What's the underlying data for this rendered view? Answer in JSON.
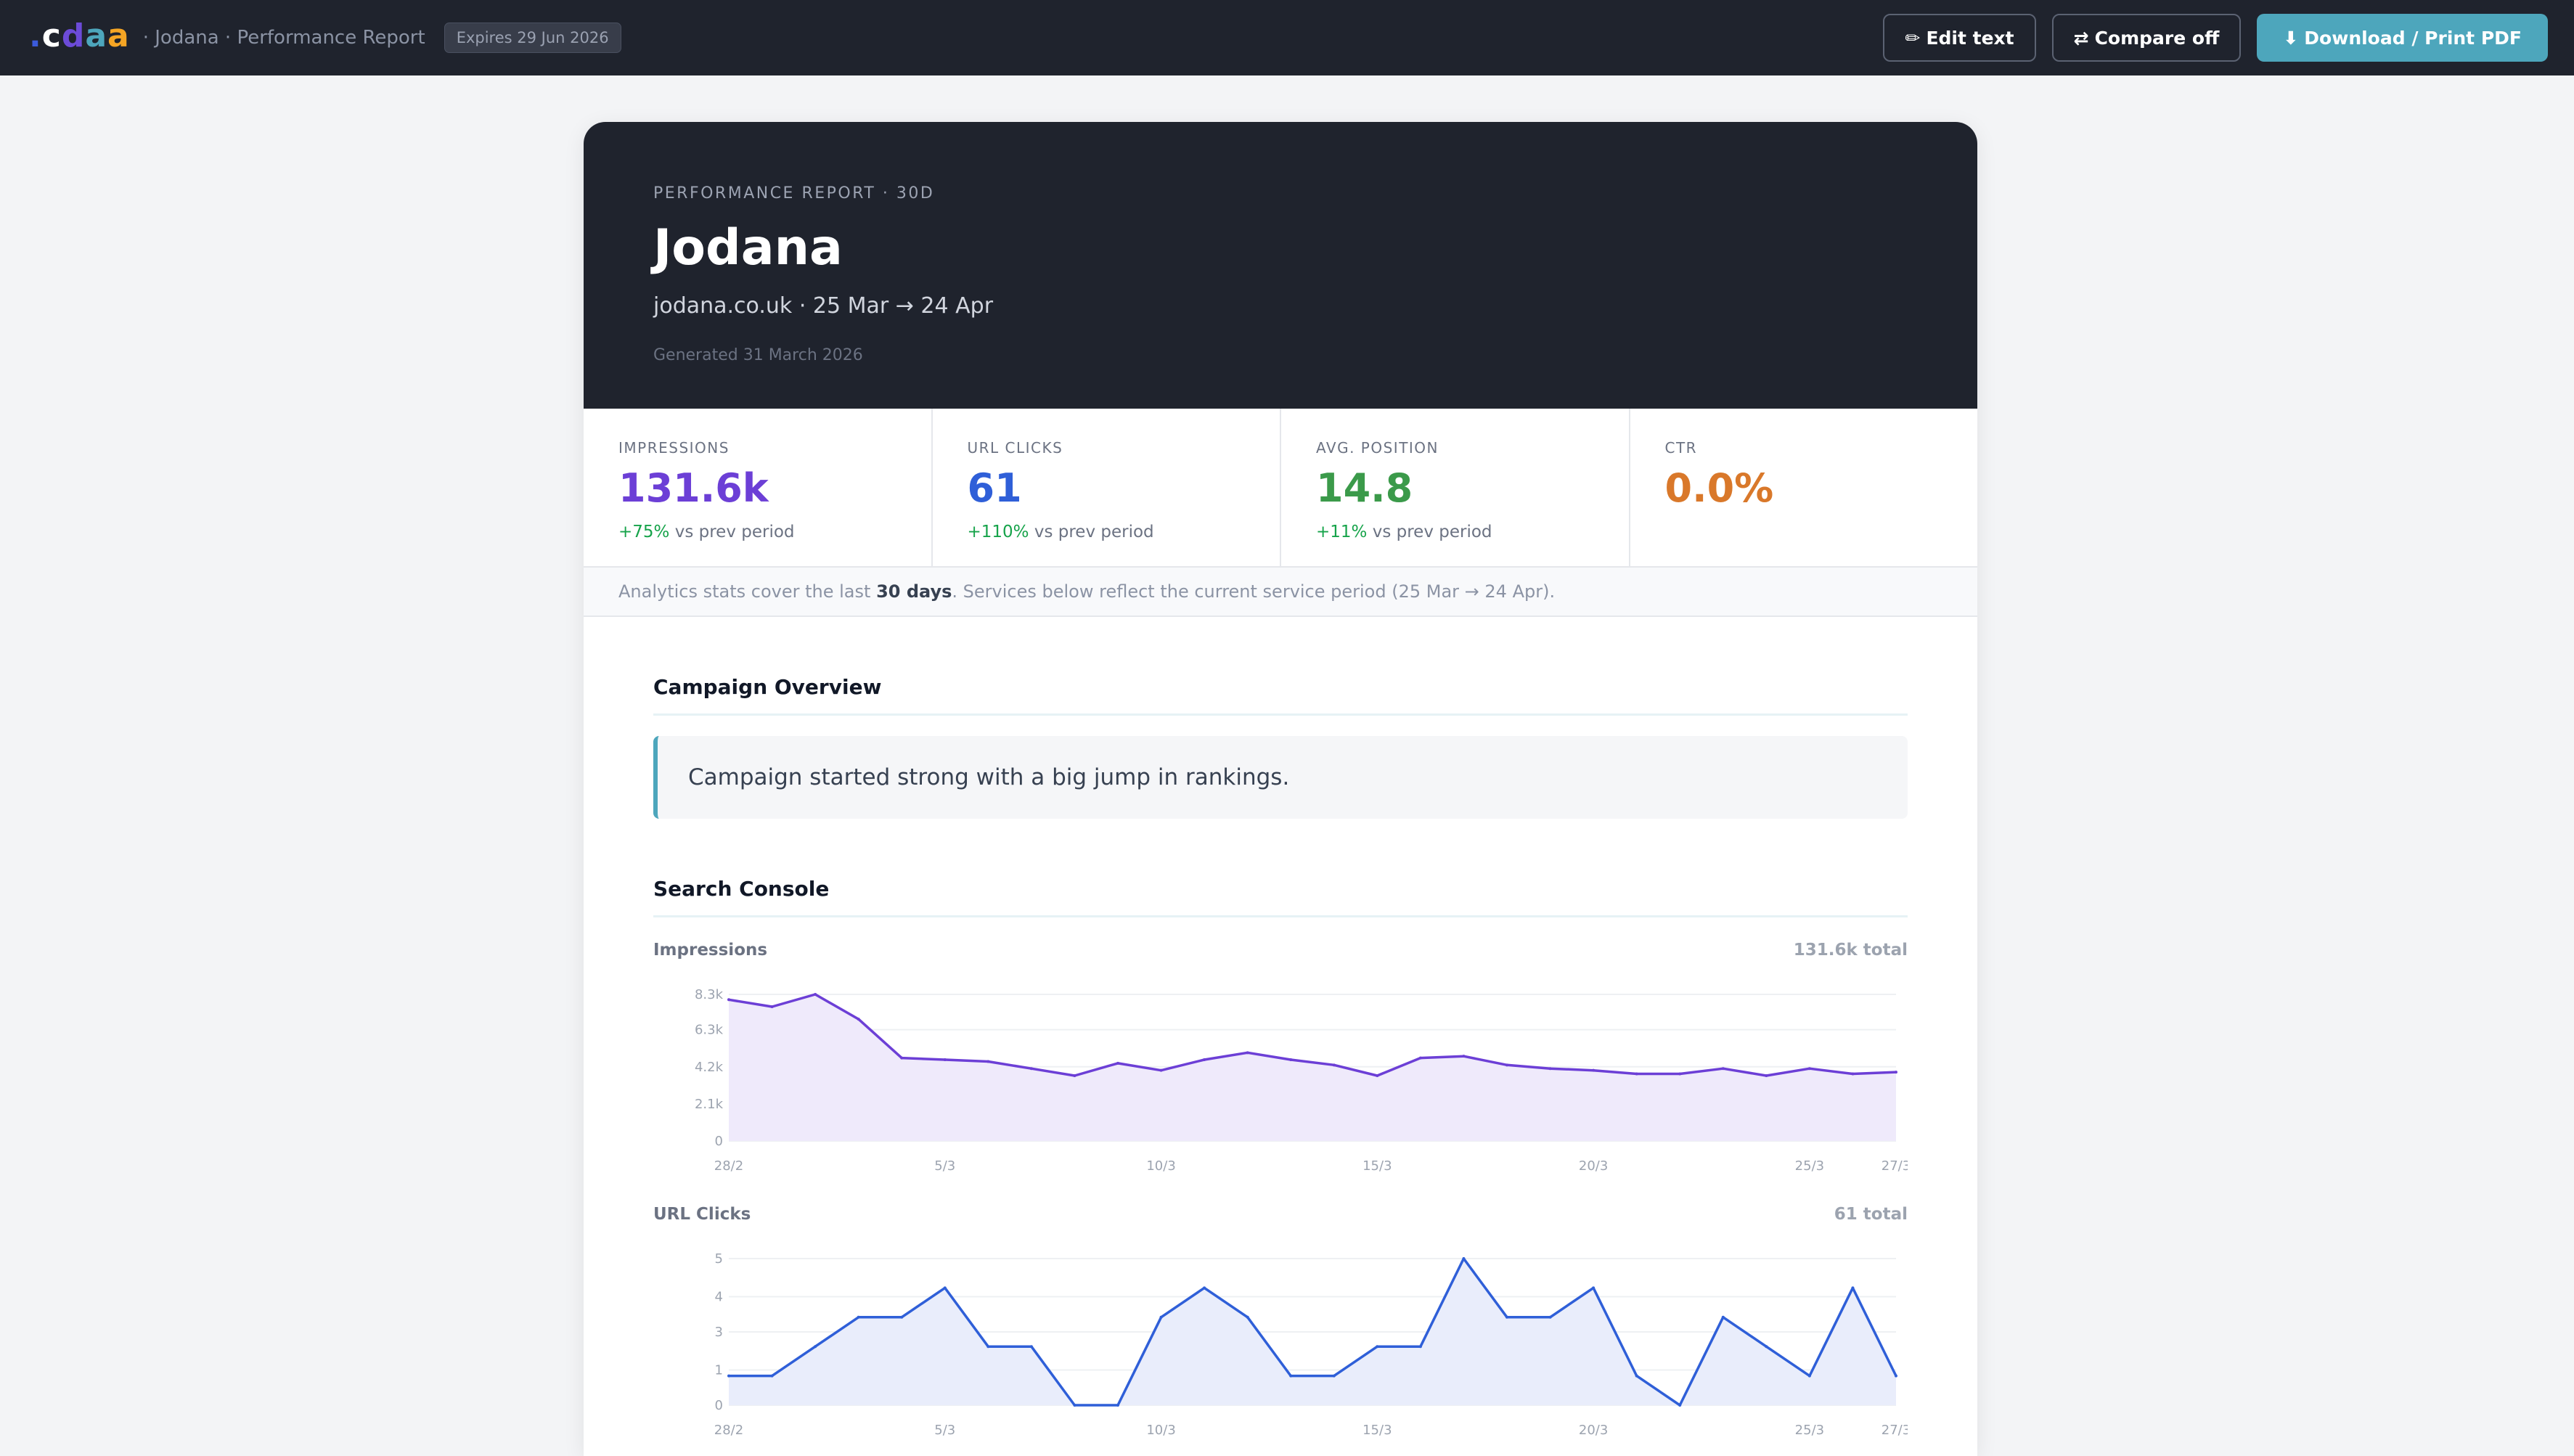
{
  "topbar": {
    "logo_letters": [
      {
        "char": ".",
        "color": "#3b5bdb"
      },
      {
        "char": "c",
        "color": "#ffffff"
      },
      {
        "char": "d",
        "color": "#6c4bd8"
      },
      {
        "char": "a",
        "color": "#4da6bc"
      },
      {
        "char": "a",
        "color": "#f5a524"
      }
    ],
    "title": "· Jodana · Performance Report",
    "expires": "Expires 29 Jun 2026",
    "edit_icon": "pencil-icon",
    "edit_label": "Edit text",
    "compare_icon": "swap-arrows-icon",
    "compare_label": "Compare off",
    "download_icon": "download-icon",
    "download_label": "Download / Print PDF"
  },
  "hero": {
    "eyebrow": "PERFORMANCE REPORT · 30D",
    "title": "Jodana",
    "subtitle": "jodana.co.uk · 25 Mar → 24 Apr",
    "generated": "Generated 31 March 2026"
  },
  "stats": [
    {
      "label": "IMPRESSIONS",
      "value": "131.6k",
      "delta": "+75%",
      "delta_suffix": " vs prev period",
      "color": "#6c3fd6"
    },
    {
      "label": "URL CLICKS",
      "value": "61",
      "delta": "+110%",
      "delta_suffix": " vs prev period",
      "color": "#2f5fd8"
    },
    {
      "label": "AVG. POSITION",
      "value": "14.8",
      "delta": "+11%",
      "delta_suffix": " vs prev period",
      "color": "#3b9a4a"
    },
    {
      "label": "CTR",
      "value": "0.0%",
      "delta": "",
      "delta_suffix": "",
      "color": "#d9782a"
    }
  ],
  "notice": {
    "prefix": "Analytics stats cover the last ",
    "bold": "30 days",
    "suffix": ". Services below reflect the current service period (25 Mar → 24 Apr)."
  },
  "overview": {
    "title": "Campaign Overview",
    "quote": "Campaign started strong with a big jump in rankings."
  },
  "search_console": {
    "title": "Search Console"
  },
  "chart_data": [
    {
      "type": "area",
      "title": "Impressions",
      "total_label": "131.6k total",
      "color": "#6c3fd6",
      "fill": "#efeafb",
      "x_ticks": [
        "28/2",
        "5/3",
        "10/3",
        "15/3",
        "20/3",
        "25/3",
        "27/3"
      ],
      "x_tick_index": [
        0,
        5,
        10,
        15,
        20,
        25,
        27
      ],
      "y_ticks": [
        "0",
        "2.1k",
        "4.2k",
        "6.3k",
        "8.3k"
      ],
      "y_tick_values": [
        0,
        2100,
        4200,
        6300,
        8300
      ],
      "ylim": [
        0,
        8300
      ],
      "x": [
        "28/2",
        "1/3",
        "2/3",
        "3/3",
        "4/3",
        "5/3",
        "6/3",
        "7/3",
        "8/3",
        "9/3",
        "10/3",
        "11/3",
        "12/3",
        "13/3",
        "14/3",
        "15/3",
        "16/3",
        "17/3",
        "18/3",
        "19/3",
        "20/3",
        "21/3",
        "22/3",
        "23/3",
        "24/3",
        "25/3",
        "26/3",
        "27/3"
      ],
      "values": [
        8000,
        7600,
        8300,
        6900,
        4700,
        4600,
        4500,
        4100,
        3700,
        4400,
        4000,
        4600,
        5000,
        4600,
        4300,
        3700,
        4700,
        4800,
        4300,
        4100,
        4000,
        3800,
        3800,
        4100,
        3700,
        4100,
        3800,
        3900
      ]
    },
    {
      "type": "area",
      "title": "URL Clicks",
      "total_label": "61 total",
      "color": "#2f5fd8",
      "fill": "#e9edfb",
      "x_ticks": [
        "28/2",
        "5/3",
        "10/3",
        "15/3",
        "20/3",
        "25/3",
        "27/3"
      ],
      "x_tick_index": [
        0,
        5,
        10,
        15,
        20,
        25,
        27
      ],
      "y_ticks": [
        "0",
        "1",
        "3",
        "4",
        "5"
      ],
      "y_tick_values": [
        0,
        1.2,
        2.5,
        3.7,
        5
      ],
      "ylim": [
        0,
        5
      ],
      "x": [
        "28/2",
        "1/3",
        "2/3",
        "3/3",
        "4/3",
        "5/3",
        "6/3",
        "7/3",
        "8/3",
        "9/3",
        "10/3",
        "11/3",
        "12/3",
        "13/3",
        "14/3",
        "15/3",
        "16/3",
        "17/3",
        "18/3",
        "19/3",
        "20/3",
        "21/3",
        "22/3",
        "23/3",
        "24/3",
        "25/3",
        "26/3",
        "27/3"
      ],
      "values": [
        1,
        1,
        2,
        3,
        3,
        4,
        2,
        2,
        0,
        0,
        3,
        4,
        3,
        1,
        1,
        2,
        2,
        5,
        3,
        3,
        4,
        1,
        0,
        3,
        2,
        1,
        4,
        1
      ]
    }
  ]
}
